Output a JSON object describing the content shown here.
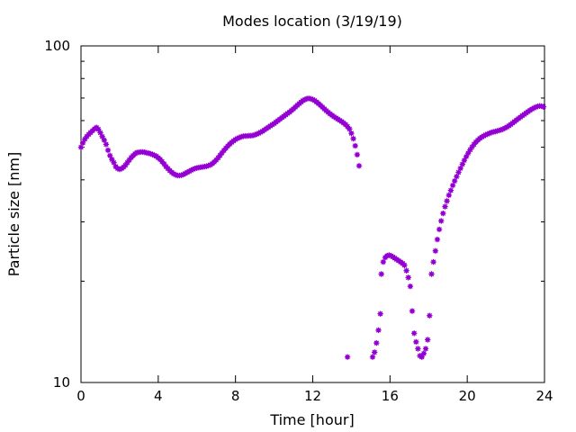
{
  "chart_data": {
    "type": "scatter",
    "title": "Modes location (3/19/19)",
    "xlabel": "Time [hour]",
    "ylabel": "Particle size [nm]",
    "xlim": [
      0,
      24
    ],
    "ylim": [
      10,
      100
    ],
    "yscale": "log",
    "grid": false,
    "legend": "none",
    "marker_color": "#9400d3",
    "x_ticks": [
      0,
      4,
      8,
      12,
      16,
      20,
      24
    ],
    "x_tick_labels": [
      "0",
      "4",
      "8",
      "12",
      "16",
      "20",
      "24"
    ],
    "y_ticks": [
      10,
      100
    ],
    "y_tick_labels": [
      "10",
      "100"
    ],
    "y_minor_ticks": [
      20,
      30,
      40,
      50,
      60,
      70,
      80,
      90
    ],
    "points": [
      [
        0.0,
        50.0
      ],
      [
        0.1,
        51.5
      ],
      [
        0.2,
        52.8
      ],
      [
        0.3,
        53.8
      ],
      [
        0.4,
        54.6
      ],
      [
        0.5,
        55.3
      ],
      [
        0.6,
        56.0
      ],
      [
        0.7,
        56.7
      ],
      [
        0.8,
        57.2
      ],
      [
        0.9,
        56.5
      ],
      [
        1.0,
        55.2
      ],
      [
        1.1,
        53.8
      ],
      [
        1.2,
        52.5
      ],
      [
        1.3,
        51.0
      ],
      [
        1.4,
        49.0
      ],
      [
        1.5,
        47.2
      ],
      [
        1.6,
        46.0
      ],
      [
        1.7,
        45.0
      ],
      [
        1.8,
        43.8
      ],
      [
        1.9,
        43.2
      ],
      [
        2.0,
        43.0
      ],
      [
        2.1,
        43.2
      ],
      [
        2.2,
        43.6
      ],
      [
        2.3,
        44.2
      ],
      [
        2.4,
        45.0
      ],
      [
        2.5,
        45.8
      ],
      [
        2.6,
        46.6
      ],
      [
        2.7,
        47.2
      ],
      [
        2.8,
        47.8
      ],
      [
        2.9,
        48.2
      ],
      [
        3.0,
        48.3
      ],
      [
        3.1,
        48.4
      ],
      [
        3.2,
        48.4
      ],
      [
        3.3,
        48.3
      ],
      [
        3.4,
        48.1
      ],
      [
        3.5,
        48.0
      ],
      [
        3.6,
        47.8
      ],
      [
        3.7,
        47.6
      ],
      [
        3.8,
        47.3
      ],
      [
        3.9,
        47.0
      ],
      [
        4.0,
        46.5
      ],
      [
        4.1,
        46.0
      ],
      [
        4.2,
        45.3
      ],
      [
        4.3,
        44.6
      ],
      [
        4.4,
        43.8
      ],
      [
        4.5,
        43.2
      ],
      [
        4.6,
        42.6
      ],
      [
        4.7,
        42.1
      ],
      [
        4.8,
        41.7
      ],
      [
        4.9,
        41.4
      ],
      [
        5.0,
        41.2
      ],
      [
        5.1,
        41.2
      ],
      [
        5.2,
        41.3
      ],
      [
        5.3,
        41.5
      ],
      [
        5.4,
        41.8
      ],
      [
        5.5,
        42.1
      ],
      [
        5.6,
        42.4
      ],
      [
        5.7,
        42.7
      ],
      [
        5.8,
        43.0
      ],
      [
        5.9,
        43.2
      ],
      [
        6.0,
        43.4
      ],
      [
        6.1,
        43.5
      ],
      [
        6.2,
        43.6
      ],
      [
        6.3,
        43.7
      ],
      [
        6.4,
        43.8
      ],
      [
        6.5,
        43.9
      ],
      [
        6.6,
        44.1
      ],
      [
        6.7,
        44.3
      ],
      [
        6.8,
        44.7
      ],
      [
        6.9,
        45.2
      ],
      [
        7.0,
        45.8
      ],
      [
        7.1,
        46.5
      ],
      [
        7.2,
        47.3
      ],
      [
        7.3,
        48.1
      ],
      [
        7.4,
        48.9
      ],
      [
        7.5,
        49.7
      ],
      [
        7.6,
        50.4
      ],
      [
        7.7,
        51.1
      ],
      [
        7.8,
        51.7
      ],
      [
        7.9,
        52.2
      ],
      [
        8.0,
        52.7
      ],
      [
        8.1,
        53.1
      ],
      [
        8.2,
        53.4
      ],
      [
        8.3,
        53.7
      ],
      [
        8.4,
        53.9
      ],
      [
        8.5,
        54.0
      ],
      [
        8.6,
        54.0
      ],
      [
        8.7,
        54.1
      ],
      [
        8.8,
        54.1
      ],
      [
        8.9,
        54.2
      ],
      [
        9.0,
        54.4
      ],
      [
        9.1,
        54.7
      ],
      [
        9.2,
        55.0
      ],
      [
        9.3,
        55.4
      ],
      [
        9.4,
        55.8
      ],
      [
        9.5,
        56.3
      ],
      [
        9.6,
        56.8
      ],
      [
        9.7,
        57.3
      ],
      [
        9.8,
        57.8
      ],
      [
        9.9,
        58.3
      ],
      [
        10.0,
        58.8
      ],
      [
        10.1,
        59.4
      ],
      [
        10.2,
        60.0
      ],
      [
        10.3,
        60.6
      ],
      [
        10.4,
        61.2
      ],
      [
        10.5,
        61.8
      ],
      [
        10.6,
        62.4
      ],
      [
        10.7,
        63.0
      ],
      [
        10.8,
        63.6
      ],
      [
        10.9,
        64.3
      ],
      [
        11.0,
        65.0
      ],
      [
        11.1,
        65.8
      ],
      [
        11.2,
        66.6
      ],
      [
        11.3,
        67.4
      ],
      [
        11.4,
        68.1
      ],
      [
        11.5,
        68.8
      ],
      [
        11.6,
        69.3
      ],
      [
        11.7,
        69.7
      ],
      [
        11.8,
        69.8
      ],
      [
        11.9,
        69.6
      ],
      [
        12.0,
        69.3
      ],
      [
        12.1,
        68.8
      ],
      [
        12.2,
        68.1
      ],
      [
        12.3,
        67.4
      ],
      [
        12.4,
        66.6
      ],
      [
        12.5,
        65.8
      ],
      [
        12.6,
        65.0
      ],
      [
        12.7,
        64.2
      ],
      [
        12.8,
        63.5
      ],
      [
        12.9,
        62.8
      ],
      [
        13.0,
        62.2
      ],
      [
        13.1,
        61.6
      ],
      [
        13.2,
        61.1
      ],
      [
        13.3,
        60.6
      ],
      [
        13.4,
        60.1
      ],
      [
        13.5,
        59.6
      ],
      [
        13.6,
        59.0
      ],
      [
        13.7,
        58.4
      ],
      [
        13.8,
        57.6
      ],
      [
        13.9,
        56.6
      ],
      [
        14.0,
        55.0
      ],
      [
        14.1,
        53.0
      ],
      [
        14.2,
        50.5
      ],
      [
        14.3,
        47.5
      ],
      [
        14.4,
        44.0
      ],
      [
        13.8,
        11.9
      ],
      [
        15.1,
        11.9
      ],
      [
        15.2,
        12.3
      ],
      [
        15.3,
        13.1
      ],
      [
        15.4,
        14.3
      ],
      [
        15.5,
        16.0
      ],
      [
        15.55,
        21.0
      ],
      [
        15.65,
        22.8
      ],
      [
        15.75,
        23.5
      ],
      [
        15.85,
        23.8
      ],
      [
        15.95,
        23.9
      ],
      [
        16.05,
        23.8
      ],
      [
        16.15,
        23.6
      ],
      [
        16.25,
        23.4
      ],
      [
        16.35,
        23.2
      ],
      [
        16.45,
        23.0
      ],
      [
        16.55,
        22.8
      ],
      [
        16.65,
        22.6
      ],
      [
        16.75,
        22.3
      ],
      [
        16.85,
        21.5
      ],
      [
        16.95,
        20.5
      ],
      [
        17.05,
        19.3
      ],
      [
        17.15,
        16.3
      ],
      [
        17.25,
        14.0
      ],
      [
        17.35,
        13.2
      ],
      [
        17.45,
        12.6
      ],
      [
        17.55,
        12.0
      ],
      [
        17.65,
        11.9
      ],
      [
        17.75,
        12.2
      ],
      [
        17.85,
        12.6
      ],
      [
        17.95,
        13.4
      ],
      [
        18.05,
        15.8
      ],
      [
        18.15,
        21.0
      ],
      [
        18.25,
        22.8
      ],
      [
        18.35,
        24.6
      ],
      [
        18.45,
        26.6
      ],
      [
        18.55,
        28.5
      ],
      [
        18.65,
        30.2
      ],
      [
        18.75,
        31.8
      ],
      [
        18.85,
        33.3
      ],
      [
        18.95,
        34.6
      ],
      [
        19.05,
        36.0
      ],
      [
        19.15,
        37.2
      ],
      [
        19.25,
        38.5
      ],
      [
        19.35,
        39.7
      ],
      [
        19.45,
        40.9
      ],
      [
        19.55,
        42.1
      ],
      [
        19.65,
        43.3
      ],
      [
        19.75,
        44.5
      ],
      [
        19.85,
        45.7
      ],
      [
        19.95,
        46.9
      ],
      [
        20.05,
        48.0
      ],
      [
        20.15,
        49.1
      ],
      [
        20.25,
        50.1
      ],
      [
        20.35,
        51.0
      ],
      [
        20.45,
        51.8
      ],
      [
        20.55,
        52.5
      ],
      [
        20.65,
        53.1
      ],
      [
        20.75,
        53.6
      ],
      [
        20.85,
        54.0
      ],
      [
        20.95,
        54.4
      ],
      [
        21.05,
        54.7
      ],
      [
        21.15,
        55.0
      ],
      [
        21.25,
        55.3
      ],
      [
        21.35,
        55.5
      ],
      [
        21.45,
        55.7
      ],
      [
        21.55,
        55.9
      ],
      [
        21.65,
        56.1
      ],
      [
        21.75,
        56.3
      ],
      [
        21.85,
        56.6
      ],
      [
        21.95,
        57.0
      ],
      [
        22.05,
        57.4
      ],
      [
        22.15,
        57.9
      ],
      [
        22.25,
        58.4
      ],
      [
        22.35,
        59.0
      ],
      [
        22.45,
        59.6
      ],
      [
        22.55,
        60.2
      ],
      [
        22.65,
        60.8
      ],
      [
        22.75,
        61.4
      ],
      [
        22.85,
        62.0
      ],
      [
        22.95,
        62.6
      ],
      [
        23.05,
        63.2
      ],
      [
        23.15,
        63.8
      ],
      [
        23.25,
        64.4
      ],
      [
        23.35,
        64.9
      ],
      [
        23.45,
        65.4
      ],
      [
        23.55,
        65.8
      ],
      [
        23.65,
        66.1
      ],
      [
        23.75,
        66.3
      ],
      [
        23.85,
        66.2
      ],
      [
        23.95,
        65.9
      ]
    ]
  }
}
